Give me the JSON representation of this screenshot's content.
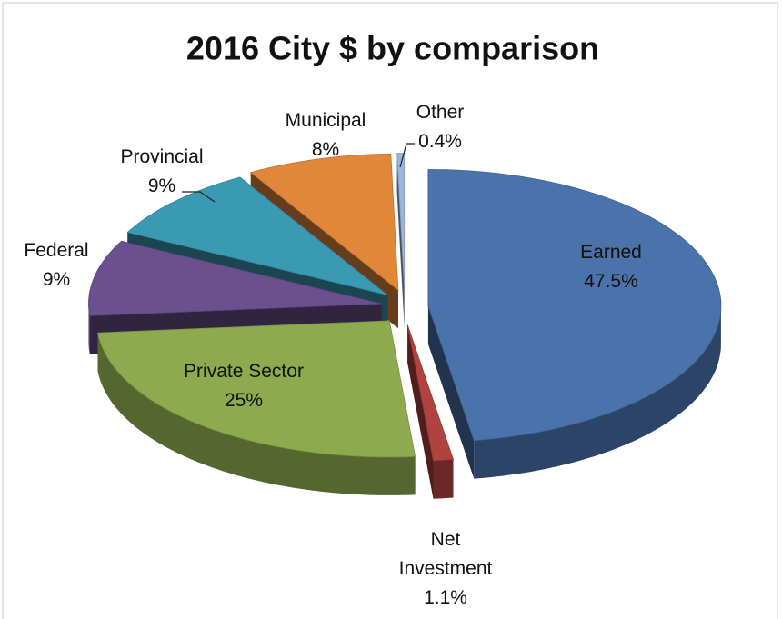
{
  "chart_data": {
    "type": "pie",
    "title": "2016 City $ by comparison",
    "categories": [
      "Earned",
      "Net Investment",
      "Private Sector",
      "Federal",
      "Provincial",
      "Municipal",
      "Other"
    ],
    "values": [
      47.5,
      1.1,
      25,
      9,
      9,
      8,
      0.4
    ],
    "value_labels": [
      "47.5%",
      "1.1%",
      "25%",
      "9%",
      "9%",
      "8%",
      "0.4%"
    ],
    "colors": [
      "#4a72ab",
      "#b04340",
      "#8eaa4e",
      "#6b4f8e",
      "#3a9ab3",
      "#e0873a",
      "#9fb4da"
    ]
  }
}
